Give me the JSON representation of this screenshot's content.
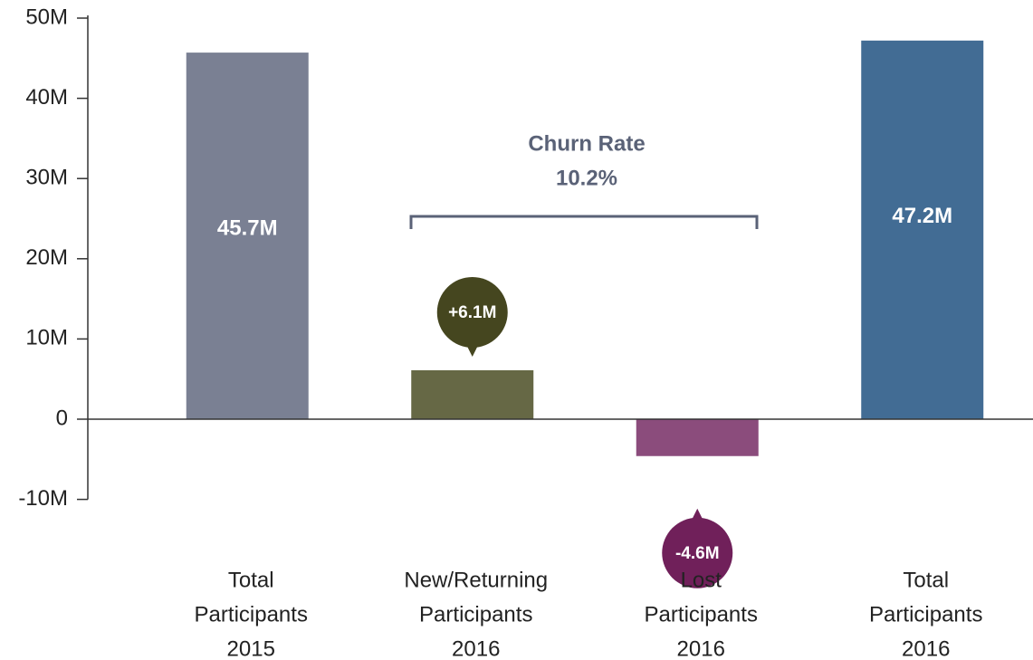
{
  "chart_data": {
    "type": "waterfall",
    "categories": [
      [
        "Total",
        "Participants",
        "2015"
      ],
      [
        "New/Returning",
        "Participants",
        "2016"
      ],
      [
        "Lost",
        "Participants",
        "2016"
      ],
      [
        "Total",
        "Participants",
        "2016"
      ]
    ],
    "values": [
      45700000,
      6100000,
      -4600000,
      47200000
    ],
    "value_labels": [
      "45.7M",
      "+6.1M",
      "-4.6M",
      "47.2M"
    ],
    "colors": [
      "#7a8093",
      "#666845",
      "#8b4c7c",
      "#426c94"
    ],
    "bubble_colors": [
      null,
      "#45461f",
      "#70205a",
      null
    ],
    "ylim": [
      -10000000,
      50000000
    ],
    "yticks": [
      {
        "value": -10000000,
        "label": "-10M"
      },
      0,
      {
        "value": 10000000,
        "label": "10M"
      },
      {
        "value": 20000000,
        "label": "20M"
      },
      {
        "value": 30000000,
        "label": "30M"
      },
      {
        "value": 40000000,
        "label": "40M"
      },
      {
        "value": 50000000,
        "label": "50M"
      }
    ],
    "annotation": {
      "title": "Churn Rate",
      "value": "10.2%"
    }
  }
}
